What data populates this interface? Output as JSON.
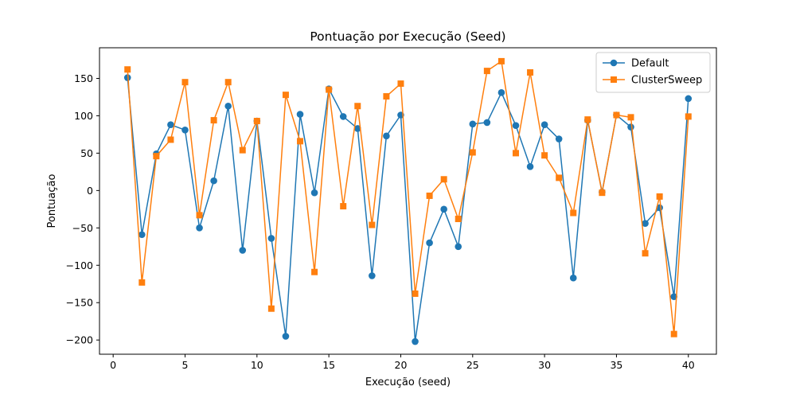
{
  "chart_data": {
    "type": "line",
    "title": "Pontuação por Execução (Seed)",
    "xlabel": "Execução (seed)",
    "ylabel": "Pontuação",
    "xlim": [
      -0.95,
      41.95
    ],
    "ylim": [
      -219,
      191
    ],
    "xticks": [
      0,
      5,
      10,
      15,
      20,
      25,
      30,
      35,
      40
    ],
    "yticks": [
      -200,
      -150,
      -100,
      -50,
      0,
      50,
      100,
      150
    ],
    "grid": false,
    "legend_position": "top-right",
    "x": [
      1,
      2,
      3,
      4,
      5,
      6,
      7,
      8,
      9,
      10,
      11,
      12,
      13,
      14,
      15,
      16,
      17,
      18,
      19,
      20,
      21,
      22,
      23,
      24,
      25,
      26,
      27,
      28,
      29,
      30,
      31,
      32,
      33,
      34,
      35,
      36,
      37,
      38,
      39,
      40
    ],
    "series": [
      {
        "name": "Default",
        "color": "#1f77b4",
        "marker": "circle",
        "values": [
          151,
          -59,
          49,
          88,
          81,
          -50,
          13,
          113,
          -80,
          93,
          -64,
          -195,
          102,
          -3,
          136,
          99,
          83,
          -114,
          73,
          101,
          -202,
          -70,
          -25,
          -75,
          89,
          91,
          131,
          87,
          32,
          88,
          69,
          -117,
          94,
          -2,
          101,
          85,
          -44,
          -23,
          -142,
          123
        ]
      },
      {
        "name": "ClusterSweep",
        "color": "#ff7f0e",
        "marker": "square",
        "values": [
          162,
          -123,
          46,
          68,
          145,
          -33,
          94,
          145,
          54,
          93,
          -158,
          128,
          66,
          -109,
          135,
          -21,
          113,
          -46,
          126,
          143,
          -138,
          -7,
          15,
          -38,
          51,
          160,
          173,
          50,
          158,
          47,
          17,
          -30,
          95,
          -3,
          101,
          98,
          -84,
          -8,
          -192,
          99
        ]
      }
    ]
  }
}
